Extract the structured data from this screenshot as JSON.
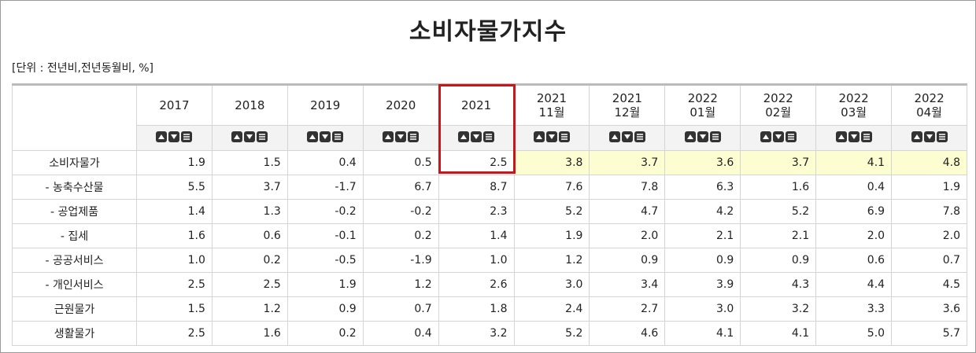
{
  "header": {
    "title": "소비자물가지수",
    "unit": "[단위 : 전년비,전년동월비, %]"
  },
  "table": {
    "columns": [
      [
        "2017"
      ],
      [
        "2018"
      ],
      [
        "2019"
      ],
      [
        "2020"
      ],
      [
        "2021"
      ],
      [
        "2021",
        "11월"
      ],
      [
        "2021",
        "12월"
      ],
      [
        "2022",
        "01월"
      ],
      [
        "2022",
        "02월"
      ],
      [
        "2022",
        "03월"
      ],
      [
        "2022",
        "04월"
      ]
    ],
    "row_labels": [
      "소비자물가",
      "- 농축수산물",
      "- 공업제품",
      "- 집세",
      "- 공공서비스",
      "- 개인서비스",
      "근원물가",
      "생활물가"
    ],
    "rows": [
      [
        "1.9",
        "1.5",
        "0.4",
        "0.5",
        "2.5",
        "3.8",
        "3.7",
        "3.6",
        "3.7",
        "4.1",
        "4.8"
      ],
      [
        "5.5",
        "3.7",
        "-1.7",
        "6.7",
        "8.7",
        "7.6",
        "7.8",
        "6.3",
        "1.6",
        "0.4",
        "1.9"
      ],
      [
        "1.4",
        "1.3",
        "-0.2",
        "-0.2",
        "2.3",
        "5.2",
        "4.7",
        "4.2",
        "5.2",
        "6.9",
        "7.8"
      ],
      [
        "1.6",
        "0.6",
        "-0.1",
        "0.2",
        "1.4",
        "1.9",
        "2.0",
        "2.1",
        "2.1",
        "2.0",
        "2.0"
      ],
      [
        "1.0",
        "0.2",
        "-0.5",
        "-1.9",
        "1.0",
        "1.2",
        "0.9",
        "0.9",
        "0.9",
        "0.6",
        "0.7"
      ],
      [
        "2.5",
        "2.5",
        "1.9",
        "1.2",
        "2.6",
        "3.0",
        "3.4",
        "3.9",
        "4.3",
        "4.4",
        "4.5"
      ],
      [
        "1.5",
        "1.2",
        "0.9",
        "0.7",
        "1.8",
        "2.4",
        "2.7",
        "3.0",
        "3.2",
        "3.3",
        "3.6"
      ],
      [
        "2.5",
        "1.6",
        "0.2",
        "0.4",
        "3.2",
        "5.2",
        "4.6",
        "4.1",
        "4.1",
        "5.0",
        "5.7"
      ]
    ]
  }
}
